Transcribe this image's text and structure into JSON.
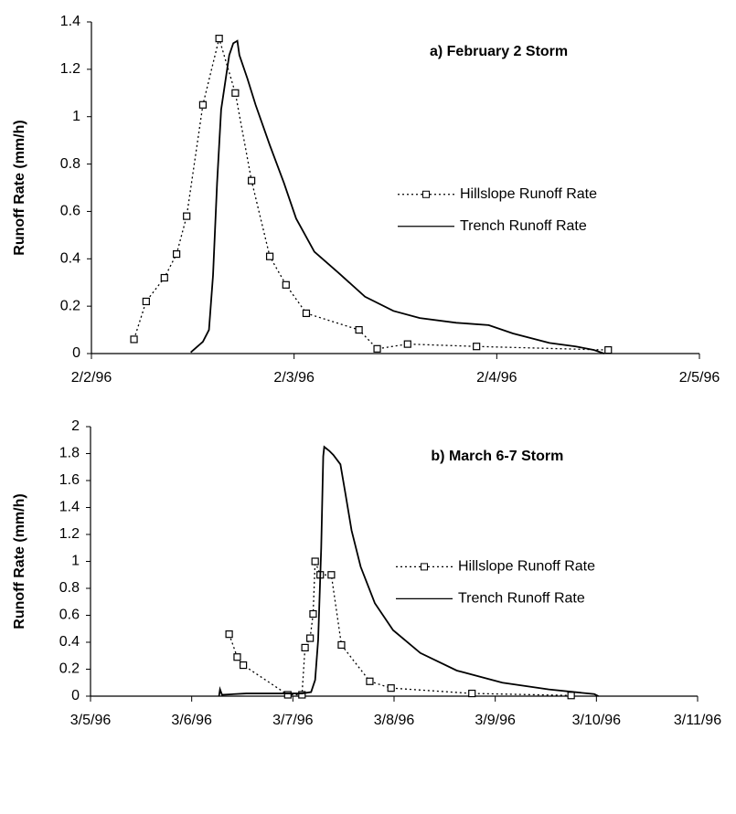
{
  "chart_data": [
    {
      "type": "line",
      "title": "a) February 2 Storm",
      "y_label": "Runoff Rate (mm/h)",
      "xlim": [
        0,
        3
      ],
      "xticks": [
        {
          "value": 0,
          "label": "2/2/96"
        },
        {
          "value": 1,
          "label": "2/3/96"
        },
        {
          "value": 2,
          "label": "2/4/96"
        },
        {
          "value": 3,
          "label": "2/5/96"
        }
      ],
      "ylim": [
        0,
        1.4
      ],
      "yticks": [
        0,
        0.2,
        0.4,
        0.6,
        0.8,
        1,
        1.2,
        1.4
      ],
      "grid": false,
      "legend": "right",
      "series": [
        {
          "name": "Hillslope Runoff Rate",
          "color": "#000000",
          "linestyle": "dotted",
          "marker": "square",
          "x": [
            0.21,
            0.27,
            0.36,
            0.42,
            0.47,
            0.55,
            0.63,
            0.71,
            0.79,
            0.88,
            0.96,
            1.06,
            1.32,
            1.41,
            1.56,
            1.9,
            2.55
          ],
          "values": [
            0.06,
            0.22,
            0.32,
            0.42,
            0.58,
            1.05,
            1.33,
            1.1,
            0.73,
            0.41,
            0.29,
            0.17,
            0.1,
            0.02,
            0.04,
            0.03,
            0.015
          ]
        },
        {
          "name": "Trench Runoff Rate",
          "color": "#000000",
          "linestyle": "solid",
          "marker": "none",
          "x": [
            0.49,
            0.55,
            0.58,
            0.6,
            0.62,
            0.64,
            0.68,
            0.7,
            0.72,
            0.73,
            0.77,
            0.81,
            0.88,
            0.95,
            1.01,
            1.1,
            1.22,
            1.35,
            1.49,
            1.62,
            1.8,
            1.96,
            2.08,
            2.26,
            2.39,
            2.48,
            2.53
          ],
          "values": [
            0.005,
            0.05,
            0.1,
            0.33,
            0.72,
            1.03,
            1.26,
            1.31,
            1.32,
            1.26,
            1.16,
            1.05,
            0.88,
            0.72,
            0.57,
            0.43,
            0.34,
            0.24,
            0.18,
            0.15,
            0.13,
            0.12,
            0.085,
            0.045,
            0.03,
            0.015,
            0
          ]
        }
      ]
    },
    {
      "type": "line",
      "title": "b) March 6-7 Storm",
      "y_label": "Runoff Rate (mm/h)",
      "xlim": [
        0,
        6
      ],
      "xticks": [
        {
          "value": 0,
          "label": "3/5/96"
        },
        {
          "value": 1,
          "label": "3/6/96"
        },
        {
          "value": 2,
          "label": "3/7/96"
        },
        {
          "value": 3,
          "label": "3/8/96"
        },
        {
          "value": 4,
          "label": "3/9/96"
        },
        {
          "value": 5,
          "label": "3/10/96"
        },
        {
          "value": 6,
          "label": "3/11/96"
        }
      ],
      "ylim": [
        0,
        2
      ],
      "yticks": [
        0,
        0.2,
        0.4,
        0.6,
        0.8,
        1,
        1.2,
        1.4,
        1.6,
        1.8,
        2
      ],
      "grid": false,
      "legend": "right",
      "series": [
        {
          "name": "Hillslope Runoff Rate",
          "color": "#000000",
          "linestyle": "dotted",
          "marker": "square",
          "x": [
            1.37,
            1.45,
            1.51,
            1.95,
            2.09,
            2.12,
            2.17,
            2.2,
            2.22,
            2.27,
            2.38,
            2.48,
            2.76,
            2.97,
            3.77,
            4.75
          ],
          "values": [
            0.46,
            0.29,
            0.23,
            0.01,
            0.01,
            0.36,
            0.43,
            0.61,
            1,
            0.9,
            0.9,
            0.38,
            0.11,
            0.06,
            0.02,
            0.005
          ]
        },
        {
          "name": "Trench Runoff Rate",
          "color": "#000000",
          "linestyle": "solid",
          "marker": "none",
          "x": [
            1.27,
            1.28,
            1.3,
            1.54,
            2.09,
            2.18,
            2.22,
            2.25,
            2.28,
            2.3,
            2.31,
            2.36,
            2.4,
            2.47,
            2.52,
            2.58,
            2.67,
            2.81,
            2.99,
            3.26,
            3.62,
            4.07,
            4.53,
            4.98,
            5.02
          ],
          "values": [
            0,
            0.05,
            0.01,
            0.02,
            0.02,
            0.03,
            0.12,
            0.42,
            1.1,
            1.78,
            1.85,
            1.82,
            1.79,
            1.72,
            1.5,
            1.23,
            0.96,
            0.69,
            0.49,
            0.32,
            0.19,
            0.1,
            0.05,
            0.015,
            0
          ]
        }
      ]
    }
  ]
}
